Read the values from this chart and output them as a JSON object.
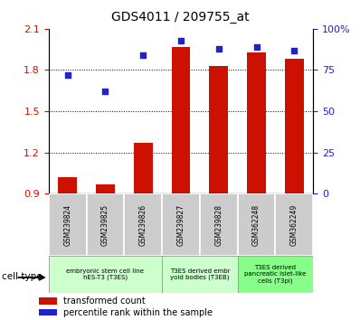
{
  "title": "GDS4011 / 209755_at",
  "samples": [
    "GSM239824",
    "GSM239825",
    "GSM239826",
    "GSM239827",
    "GSM239828",
    "GSM362248",
    "GSM362249"
  ],
  "transformed_count": [
    1.02,
    0.97,
    1.27,
    1.97,
    1.83,
    1.93,
    1.88
  ],
  "percentile_rank": [
    72,
    62,
    84,
    93,
    88,
    89,
    87
  ],
  "ylim_left": [
    0.9,
    2.1
  ],
  "ylim_right": [
    0,
    100
  ],
  "yticks_left": [
    0.9,
    1.2,
    1.5,
    1.8,
    2.1
  ],
  "yticks_right": [
    0,
    25,
    50,
    75,
    100
  ],
  "bar_color": "#cc1100",
  "dot_color": "#2222cc",
  "bar_bottom": 0.9,
  "cell_groups": [
    {
      "label": "embryonic stem cell line\nhES-T3 (T3ES)",
      "start": 0,
      "end": 2,
      "color": "#ccffcc"
    },
    {
      "label": "T3ES derived embr\nyoid bodies (T3EB)",
      "start": 3,
      "end": 4,
      "color": "#ccffcc"
    },
    {
      "label": "T3ES derived\npancreatic islet-like\ncells (T3pi)",
      "start": 5,
      "end": 6,
      "color": "#88ff88"
    }
  ],
  "legend_items": [
    {
      "label": "transformed count",
      "color": "#cc1100"
    },
    {
      "label": "percentile rank within the sample",
      "color": "#2222cc"
    }
  ],
  "cell_type_label": "cell type",
  "background_color": "#ffffff",
  "tick_label_color_left": "#cc1100",
  "tick_label_color_right": "#2222cc",
  "grid_lines": [
    1.2,
    1.5,
    1.8
  ],
  "sample_box_color": "#cccccc",
  "bar_width": 0.5
}
